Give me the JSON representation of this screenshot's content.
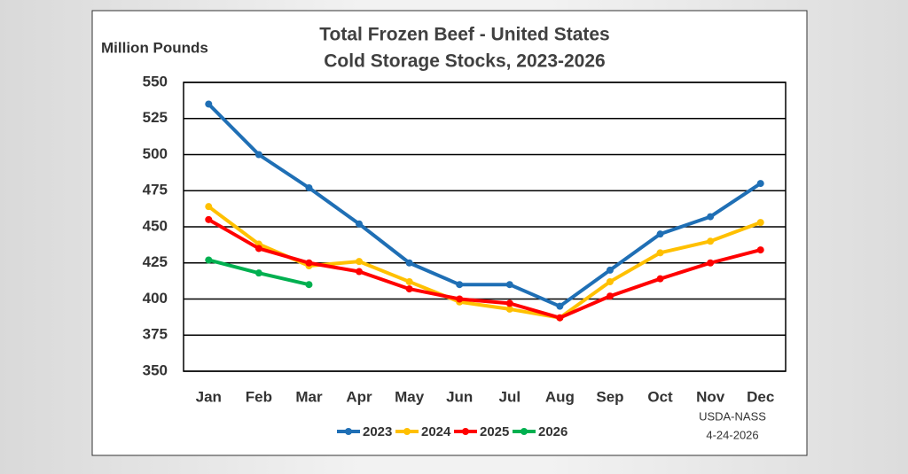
{
  "chart_data": {
    "type": "line",
    "title": "Total Frozen Beef - United States",
    "subtitle": "Cold Storage Stocks, 2023-2026",
    "y_label": "Million Pounds",
    "source": [
      "USDA-NASS",
      "4-24-2026"
    ],
    "categories": [
      "Jan",
      "Feb",
      "Mar",
      "Apr",
      "May",
      "Jun",
      "Jul",
      "Aug",
      "Sep",
      "Oct",
      "Nov",
      "Dec"
    ],
    "series": [
      {
        "name": "2023",
        "color": "#1f6fb5",
        "values": [
          535,
          500,
          477,
          452,
          425,
          410,
          410,
          395,
          420,
          445,
          457,
          480
        ]
      },
      {
        "name": "2024",
        "color": "#ffc000",
        "values": [
          464,
          438,
          423,
          426,
          412,
          398,
          393,
          387,
          412,
          432,
          440,
          453
        ]
      },
      {
        "name": "2025",
        "color": "#ff0000",
        "values": [
          455,
          435,
          425,
          419,
          407,
          400,
          397,
          387,
          402,
          414,
          425,
          434
        ]
      },
      {
        "name": "2026",
        "color": "#00b050",
        "values": [
          427,
          418,
          410,
          null,
          null,
          null,
          null,
          null,
          null,
          null,
          null,
          null
        ]
      }
    ],
    "ylim": [
      350,
      550
    ],
    "yticks": [
      350,
      375,
      400,
      425,
      450,
      475,
      500,
      525,
      550
    ],
    "grid": true
  }
}
